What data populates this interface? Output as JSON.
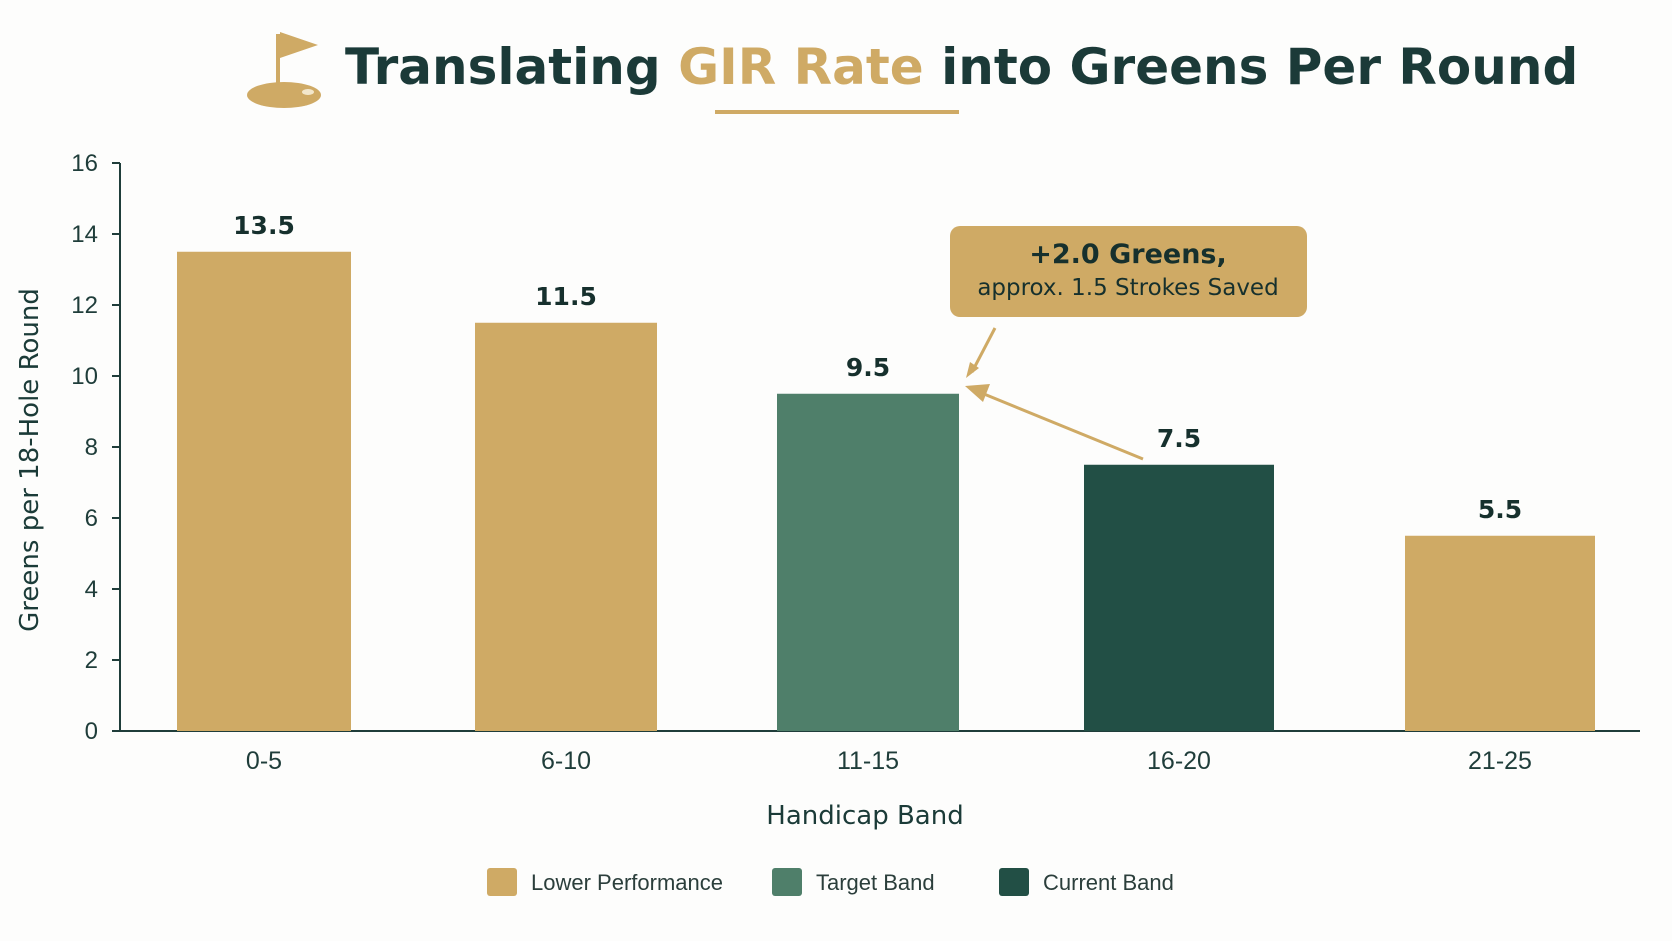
{
  "title": {
    "part1": "Translating ",
    "part2": "GIR Rate",
    "part3": " into Greens Per Round"
  },
  "colors": {
    "lower": "#cfaa65",
    "target": "#4f7f6a",
    "current": "#224f45",
    "title_dark": "#1b3a38",
    "title_gold": "#cfaa65",
    "axis": "#1f3d3a"
  },
  "icon": "golf-flag-icon",
  "chart_data": {
    "type": "bar",
    "categories": [
      "0-5",
      "6-10",
      "11-15",
      "16-20",
      "21-25"
    ],
    "values": [
      13.5,
      11.5,
      9.5,
      7.5,
      5.5
    ],
    "value_labels": [
      "13.5",
      "11.5",
      "9.5",
      "7.5",
      "5.5"
    ],
    "bar_groups": [
      "lower",
      "lower",
      "target",
      "current",
      "lower"
    ],
    "xlabel": "Handicap Band",
    "ylabel": "Greens per 18-Hole Round",
    "ylim": [
      0,
      16
    ],
    "yticks": [
      0,
      2,
      4,
      6,
      8,
      10,
      12,
      14,
      16
    ],
    "grid": false,
    "legend": {
      "placement": "bottom-center",
      "items": [
        {
          "key": "lower",
          "label": "Lower Performance"
        },
        {
          "key": "target",
          "label": "Target Band"
        },
        {
          "key": "current",
          "label": "Current Band"
        }
      ]
    },
    "annotation": {
      "line1": "+2.0 Greens,",
      "line2": "approx. 1.5 Strokes Saved",
      "from_category": "16-20",
      "to_category": "11-15"
    }
  }
}
